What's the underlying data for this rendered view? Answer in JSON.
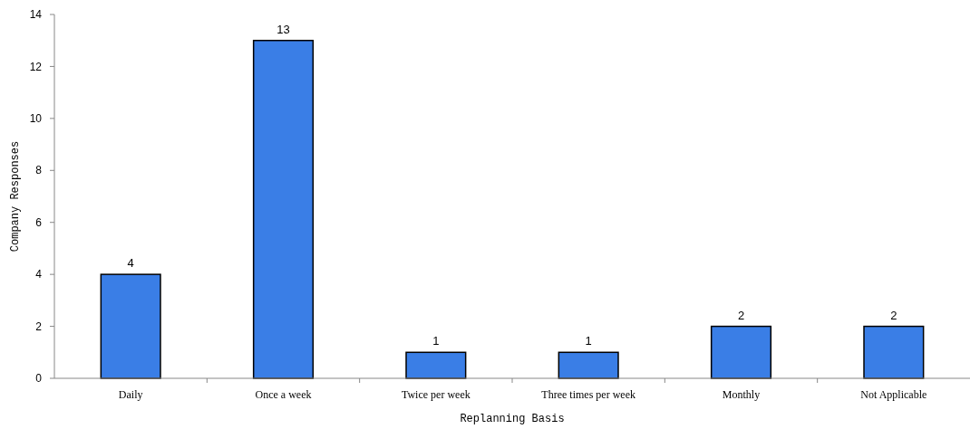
{
  "chart_data": {
    "type": "bar",
    "xlabel": "Replanning Basis",
    "ylabel": "Company Responses",
    "categories": [
      "Daily",
      "Once a week",
      "Twice per week",
      "Three times per week",
      "Monthly",
      "Not Applicable"
    ],
    "values": [
      4,
      13,
      1,
      1,
      2,
      2
    ],
    "color": "#3a7ee6",
    "ylim": [
      0,
      14
    ],
    "yticks": [
      0,
      2,
      4,
      6,
      8,
      10,
      12,
      14
    ],
    "data_labels": true,
    "grid": false
  }
}
